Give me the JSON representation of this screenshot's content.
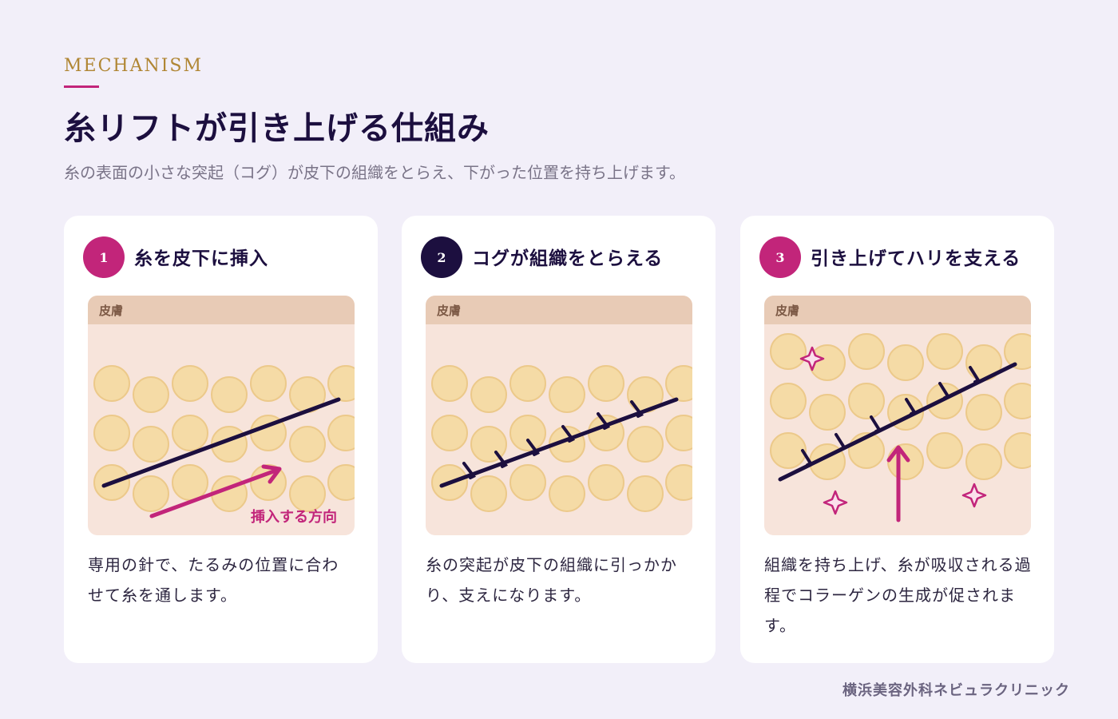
{
  "header": {
    "eyebrow": "MECHANISM",
    "title": "糸リフトが引き上げる仕組み",
    "subtitle": "糸の表面の小さな突起（コグ）が皮下の組織をとらえ、下がった位置を持ち上げます。"
  },
  "steps": [
    {
      "number": "1",
      "title": "糸を皮下に挿入",
      "skin_label": "皮膚",
      "arrow_label": "挿入する方向",
      "description": "専用の針で、たるみの位置に合わせて糸を通します。"
    },
    {
      "number": "2",
      "title": "コグが組織をとらえる",
      "skin_label": "皮膚",
      "description": "糸の突起が皮下の組織に引っかかり、支えになります。"
    },
    {
      "number": "3",
      "title": "引き上げてハリを支える",
      "skin_label": "皮膚",
      "description": "組織を持ち上げ、糸が吸収される過程でコラーゲンの生成が促されます。"
    }
  ],
  "footer": {
    "clinic": "横浜美容外科ネビュラクリニック"
  },
  "colors": {
    "background": "#f2eff9",
    "navy": "#1c0f3f",
    "magenta": "#c2257a",
    "gold": "#b08634",
    "skin_band": "#e8cbb6",
    "tissue": "#f7e4db",
    "cell_fill": "#f4d9a0",
    "cell_stroke": "#ecc98a"
  }
}
